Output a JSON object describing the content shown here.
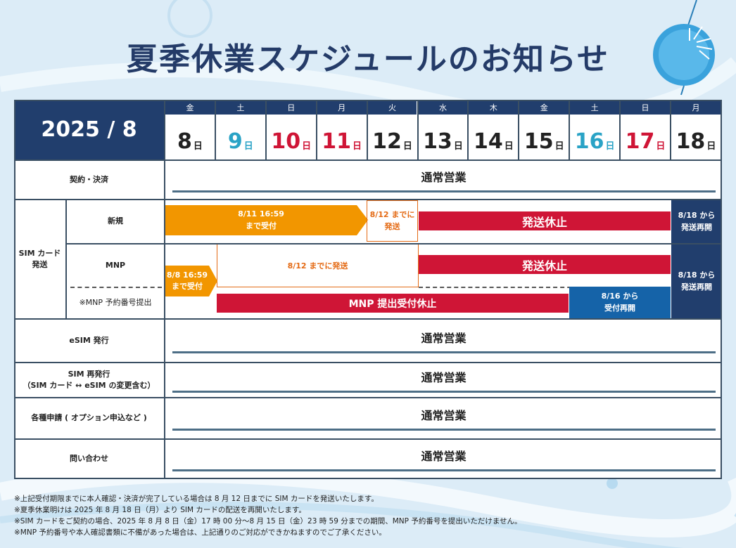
{
  "title": "夏季休業スケジュールのお知らせ",
  "colors": {
    "navy": "#213e6d",
    "red": "#cf1536",
    "orange": "#f29600",
    "blue": "#1563a8",
    "cyan": "#2aa3c6"
  },
  "header": {
    "year_month": "2025 / 8",
    "day_unit": "日",
    "days": [
      {
        "dow": "金",
        "num": "8",
        "color": "#222222"
      },
      {
        "dow": "土",
        "num": "9",
        "color": "#2aa3c6"
      },
      {
        "dow": "日",
        "num": "10",
        "color": "#cf1536"
      },
      {
        "dow": "月",
        "num": "11",
        "color": "#cf1536"
      },
      {
        "dow": "火",
        "num": "12",
        "color": "#222222"
      },
      {
        "dow": "水",
        "num": "13",
        "color": "#222222"
      },
      {
        "dow": "木",
        "num": "14",
        "color": "#222222"
      },
      {
        "dow": "金",
        "num": "15",
        "color": "#222222"
      },
      {
        "dow": "土",
        "num": "16",
        "color": "#2aa3c6"
      },
      {
        "dow": "日",
        "num": "17",
        "color": "#cf1536"
      },
      {
        "dow": "月",
        "num": "18",
        "color": "#222222"
      }
    ]
  },
  "rows": {
    "contract": "契約・決済",
    "sim_group": "SIM カード\n発送",
    "new": "新規",
    "mnp": "MNP",
    "mnp_number": "※MNP 予約番号提出",
    "esim": "eSIM 発行",
    "reissue": "SIM 再発行\n（SIM カード ↔ eSIM の変更含む）",
    "applications": "各種申請 ( オプション申込など )",
    "inquiry": "問い合わせ"
  },
  "labels": {
    "normal": "通常営業",
    "new_deadline": "8/11 16:59\nまで受付",
    "new_ship_by": "8/12 までに\n発送",
    "shipping_stop": "発送休止",
    "resume_18": "8/18 から\n発送再開",
    "mnp_deadline": "8/8 16:59\nまで受付",
    "mnp_ship_by": "8/12 までに発送",
    "mnp_stop": "MNP 提出受付休止",
    "mnp_resume_16": "8/16 から\n受付再開"
  },
  "footer": [
    "※上記受付期限までに本人確認・決済が完了している場合は 8 月 12 日までに SIM カードを発送いたします。",
    "※夏季休業明けは 2025 年 8 月 18 日（月）より SIM カードの配送を再開いたします。",
    "※SIM カードをご契約の場合、2025 年 8 月 8 日（金）17 時 00 分～8 月 15 日（金）23 時 59 分までの期間、MNP 予約番号を提出いただけません。",
    "※MNP 予約番号や本人確認書類に不備があった場合は、上記通りのご対応ができかねますのでご了承ください。"
  ]
}
